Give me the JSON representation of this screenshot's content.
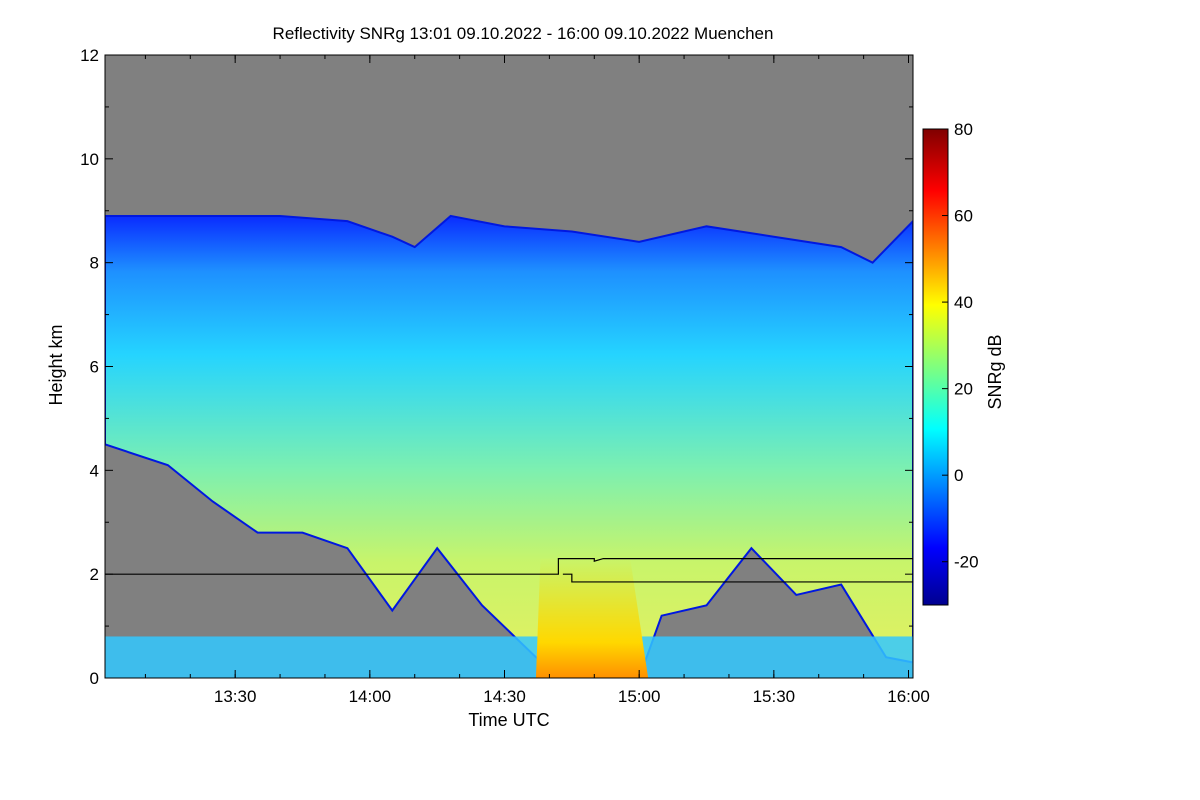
{
  "chart_data": {
    "type": "heatmap",
    "title": "Reflectivity SNRg   13:01 09.10.2022 - 16:00 09.10.2022 Muenchen",
    "xlabel": "Time UTC",
    "ylabel": "Height km",
    "xlim": [
      "13:01",
      "16:01"
    ],
    "ylim": [
      0,
      12
    ],
    "x_ticks": [
      "13:30",
      "14:00",
      "14:30",
      "15:00",
      "15:30",
      "16:00"
    ],
    "y_ticks": [
      0,
      2,
      4,
      6,
      8,
      10,
      12
    ],
    "colorbar": {
      "label": "SNRg dB",
      "range": [
        -30,
        80
      ],
      "ticks": [
        -20,
        0,
        20,
        40,
        60,
        80
      ],
      "colormap": "jet"
    },
    "background_color": "#808080",
    "cloud_top_km": [
      {
        "time": "13:01",
        "height": 8.9
      },
      {
        "time": "13:20",
        "height": 8.9
      },
      {
        "time": "13:40",
        "height": 8.9
      },
      {
        "time": "13:55",
        "height": 8.8
      },
      {
        "time": "14:05",
        "height": 8.5
      },
      {
        "time": "14:10",
        "height": 8.3
      },
      {
        "time": "14:18",
        "height": 8.9
      },
      {
        "time": "14:30",
        "height": 8.7
      },
      {
        "time": "14:45",
        "height": 8.6
      },
      {
        "time": "15:00",
        "height": 8.4
      },
      {
        "time": "15:15",
        "height": 8.7
      },
      {
        "time": "15:30",
        "height": 8.5
      },
      {
        "time": "15:45",
        "height": 8.3
      },
      {
        "time": "15:52",
        "height": 8.0
      },
      {
        "time": "16:01",
        "height": 8.8
      }
    ],
    "cloud_base_km": [
      {
        "time": "13:01",
        "height": 4.5
      },
      {
        "time": "13:15",
        "height": 4.1
      },
      {
        "time": "13:25",
        "height": 3.4
      },
      {
        "time": "13:35",
        "height": 2.8
      },
      {
        "time": "13:45",
        "height": 2.8
      },
      {
        "time": "13:55",
        "height": 2.5
      },
      {
        "time": "14:05",
        "height": 1.3
      },
      {
        "time": "14:15",
        "height": 2.5
      },
      {
        "time": "14:25",
        "height": 1.4
      },
      {
        "time": "14:37",
        "height": 0.4
      },
      {
        "time": "14:45",
        "height": 0.0
      },
      {
        "time": "15:00",
        "height": 0.0
      },
      {
        "time": "15:05",
        "height": 1.2
      },
      {
        "time": "15:15",
        "height": 1.4
      },
      {
        "time": "15:25",
        "height": 2.5
      },
      {
        "time": "15:35",
        "height": 1.6
      },
      {
        "time": "15:45",
        "height": 1.8
      },
      {
        "time": "15:55",
        "height": 0.4
      },
      {
        "time": "16:01",
        "height": 0.3
      }
    ],
    "line_series": [
      {
        "points": [
          {
            "time": "13:01",
            "height": 2.0
          },
          {
            "time": "14:42",
            "height": 2.0
          },
          {
            "time": "14:42",
            "height": 2.3
          },
          {
            "time": "14:50",
            "height": 2.3
          },
          {
            "time": "14:50",
            "height": 2.25
          },
          {
            "time": "14:52",
            "height": 2.3
          },
          {
            "time": "16:01",
            "height": 2.3
          }
        ]
      },
      {
        "points": [
          {
            "time": "14:43",
            "height": 2.0
          },
          {
            "time": "14:45",
            "height": 2.0
          },
          {
            "time": "14:45",
            "height": 1.85
          },
          {
            "time": "16:01",
            "height": 1.85
          }
        ]
      }
    ]
  }
}
